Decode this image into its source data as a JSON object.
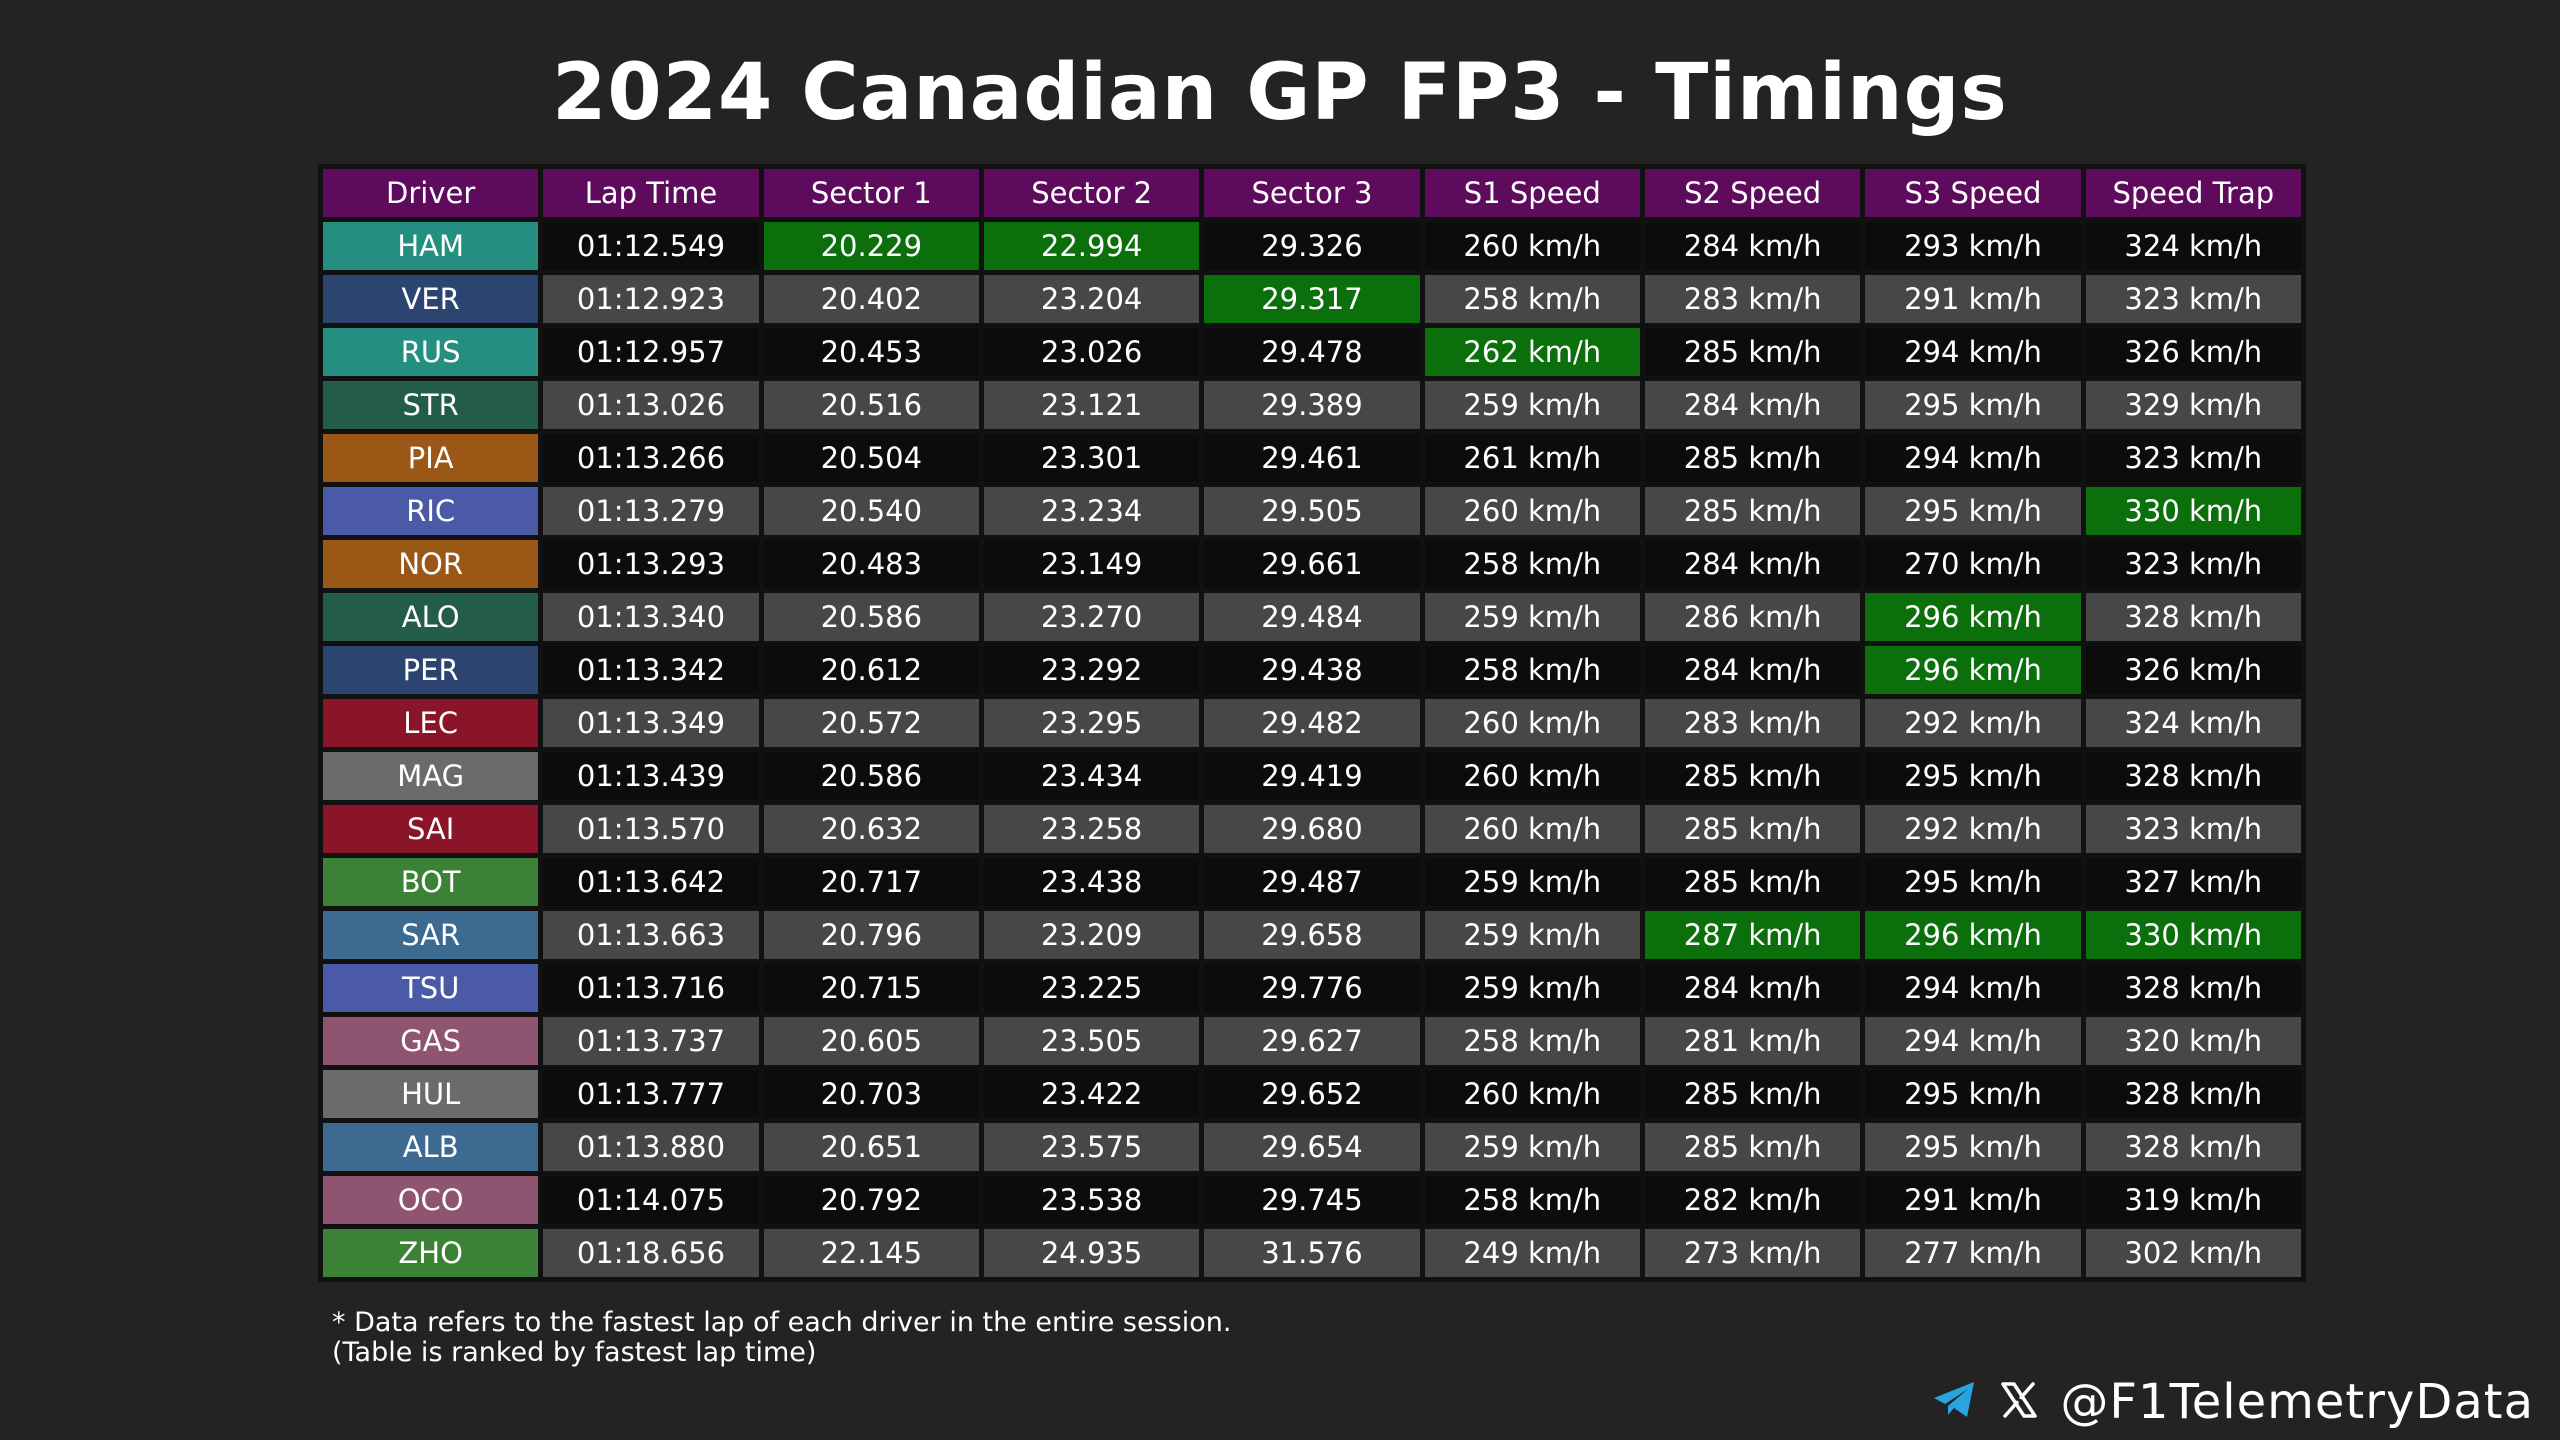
{
  "title": "2024 Canadian GP FP3 - Timings",
  "colors": {
    "background": "#232323",
    "header": "#5e0b5e",
    "row_dark": "#0c0c0c",
    "row_light": "#474747",
    "best": "#0b6f0b"
  },
  "chart_data": {
    "type": "table",
    "columns": [
      "Driver",
      "Lap Time",
      "Sector 1",
      "Sector 2",
      "Sector 3",
      "S1 Speed",
      "S2 Speed",
      "S3 Speed",
      "Speed Trap"
    ],
    "rows": [
      {
        "driver": "HAM",
        "team_color": "#248f80",
        "cells": [
          "01:12.549",
          "20.229",
          "22.994",
          "29.326",
          "260 km/h",
          "284 km/h",
          "293 km/h",
          "324 km/h"
        ],
        "best": [
          false,
          true,
          true,
          false,
          false,
          false,
          false,
          false
        ]
      },
      {
        "driver": "VER",
        "team_color": "#2c4470",
        "cells": [
          "01:12.923",
          "20.402",
          "23.204",
          "29.317",
          "258 km/h",
          "283 km/h",
          "291 km/h",
          "323 km/h"
        ],
        "best": [
          false,
          false,
          false,
          true,
          false,
          false,
          false,
          false
        ]
      },
      {
        "driver": "RUS",
        "team_color": "#248f80",
        "cells": [
          "01:12.957",
          "20.453",
          "23.026",
          "29.478",
          "262 km/h",
          "285 km/h",
          "294 km/h",
          "326 km/h"
        ],
        "best": [
          false,
          false,
          false,
          false,
          true,
          false,
          false,
          false
        ]
      },
      {
        "driver": "STR",
        "team_color": "#235c48",
        "cells": [
          "01:13.026",
          "20.516",
          "23.121",
          "29.389",
          "259 km/h",
          "284 km/h",
          "295 km/h",
          "329 km/h"
        ],
        "best": [
          false,
          false,
          false,
          false,
          false,
          false,
          false,
          false
        ]
      },
      {
        "driver": "PIA",
        "team_color": "#9a5716",
        "cells": [
          "01:13.266",
          "20.504",
          "23.301",
          "29.461",
          "261 km/h",
          "285 km/h",
          "294 km/h",
          "323 km/h"
        ],
        "best": [
          false,
          false,
          false,
          false,
          false,
          false,
          false,
          false
        ]
      },
      {
        "driver": "RIC",
        "team_color": "#4a5aa6",
        "cells": [
          "01:13.279",
          "20.540",
          "23.234",
          "29.505",
          "260 km/h",
          "285 km/h",
          "295 km/h",
          "330 km/h"
        ],
        "best": [
          false,
          false,
          false,
          false,
          false,
          false,
          false,
          true
        ]
      },
      {
        "driver": "NOR",
        "team_color": "#9a5716",
        "cells": [
          "01:13.293",
          "20.483",
          "23.149",
          "29.661",
          "258 km/h",
          "284 km/h",
          "270 km/h",
          "323 km/h"
        ],
        "best": [
          false,
          false,
          false,
          false,
          false,
          false,
          false,
          false
        ]
      },
      {
        "driver": "ALO",
        "team_color": "#235c48",
        "cells": [
          "01:13.340",
          "20.586",
          "23.270",
          "29.484",
          "259 km/h",
          "286 km/h",
          "296 km/h",
          "328 km/h"
        ],
        "best": [
          false,
          false,
          false,
          false,
          false,
          false,
          true,
          false
        ]
      },
      {
        "driver": "PER",
        "team_color": "#2c4470",
        "cells": [
          "01:13.342",
          "20.612",
          "23.292",
          "29.438",
          "258 km/h",
          "284 km/h",
          "296 km/h",
          "326 km/h"
        ],
        "best": [
          false,
          false,
          false,
          false,
          false,
          false,
          true,
          false
        ]
      },
      {
        "driver": "LEC",
        "team_color": "#8a1428",
        "cells": [
          "01:13.349",
          "20.572",
          "23.295",
          "29.482",
          "260 km/h",
          "283 km/h",
          "292 km/h",
          "324 km/h"
        ],
        "best": [
          false,
          false,
          false,
          false,
          false,
          false,
          false,
          false
        ]
      },
      {
        "driver": "MAG",
        "team_color": "#6b6b6b",
        "cells": [
          "01:13.439",
          "20.586",
          "23.434",
          "29.419",
          "260 km/h",
          "285 km/h",
          "295 km/h",
          "328 km/h"
        ],
        "best": [
          false,
          false,
          false,
          false,
          false,
          false,
          false,
          false
        ]
      },
      {
        "driver": "SAI",
        "team_color": "#8a1428",
        "cells": [
          "01:13.570",
          "20.632",
          "23.258",
          "29.680",
          "260 km/h",
          "285 km/h",
          "292 km/h",
          "323 km/h"
        ],
        "best": [
          false,
          false,
          false,
          false,
          false,
          false,
          false,
          false
        ]
      },
      {
        "driver": "BOT",
        "team_color": "#3b8236",
        "cells": [
          "01:13.642",
          "20.717",
          "23.438",
          "29.487",
          "259 km/h",
          "285 km/h",
          "295 km/h",
          "327 km/h"
        ],
        "best": [
          false,
          false,
          false,
          false,
          false,
          false,
          false,
          false
        ]
      },
      {
        "driver": "SAR",
        "team_color": "#3c6a90",
        "cells": [
          "01:13.663",
          "20.796",
          "23.209",
          "29.658",
          "259 km/h",
          "287 km/h",
          "296 km/h",
          "330 km/h"
        ],
        "best": [
          false,
          false,
          false,
          false,
          false,
          true,
          true,
          true
        ]
      },
      {
        "driver": "TSU",
        "team_color": "#4a5aa6",
        "cells": [
          "01:13.716",
          "20.715",
          "23.225",
          "29.776",
          "259 km/h",
          "284 km/h",
          "294 km/h",
          "328 km/h"
        ],
        "best": [
          false,
          false,
          false,
          false,
          false,
          false,
          false,
          false
        ]
      },
      {
        "driver": "GAS",
        "team_color": "#8e5470",
        "cells": [
          "01:13.737",
          "20.605",
          "23.505",
          "29.627",
          "258 km/h",
          "281 km/h",
          "294 km/h",
          "320 km/h"
        ],
        "best": [
          false,
          false,
          false,
          false,
          false,
          false,
          false,
          false
        ]
      },
      {
        "driver": "HUL",
        "team_color": "#6b6b6b",
        "cells": [
          "01:13.777",
          "20.703",
          "23.422",
          "29.652",
          "260 km/h",
          "285 km/h",
          "295 km/h",
          "328 km/h"
        ],
        "best": [
          false,
          false,
          false,
          false,
          false,
          false,
          false,
          false
        ]
      },
      {
        "driver": "ALB",
        "team_color": "#3c6a90",
        "cells": [
          "01:13.880",
          "20.651",
          "23.575",
          "29.654",
          "259 km/h",
          "285 km/h",
          "295 km/h",
          "328 km/h"
        ],
        "best": [
          false,
          false,
          false,
          false,
          false,
          false,
          false,
          false
        ]
      },
      {
        "driver": "OCO",
        "team_color": "#8e5470",
        "cells": [
          "01:14.075",
          "20.792",
          "23.538",
          "29.745",
          "258 km/h",
          "282 km/h",
          "291 km/h",
          "319 km/h"
        ],
        "best": [
          false,
          false,
          false,
          false,
          false,
          false,
          false,
          false
        ]
      },
      {
        "driver": "ZHO",
        "team_color": "#3b8236",
        "cells": [
          "01:18.656",
          "22.145",
          "24.935",
          "31.576",
          "249 km/h",
          "273 km/h",
          "277 km/h",
          "302 km/h"
        ],
        "best": [
          false,
          false,
          false,
          false,
          false,
          false,
          false,
          false
        ]
      }
    ]
  },
  "footnote": {
    "line1": "* Data refers to the fastest lap of each driver in the entire session.",
    "line2": "(Table is ranked by fastest lap time)"
  },
  "branding": {
    "handle": "@F1TelemetryData",
    "icons": [
      "telegram-icon",
      "x-icon"
    ]
  }
}
